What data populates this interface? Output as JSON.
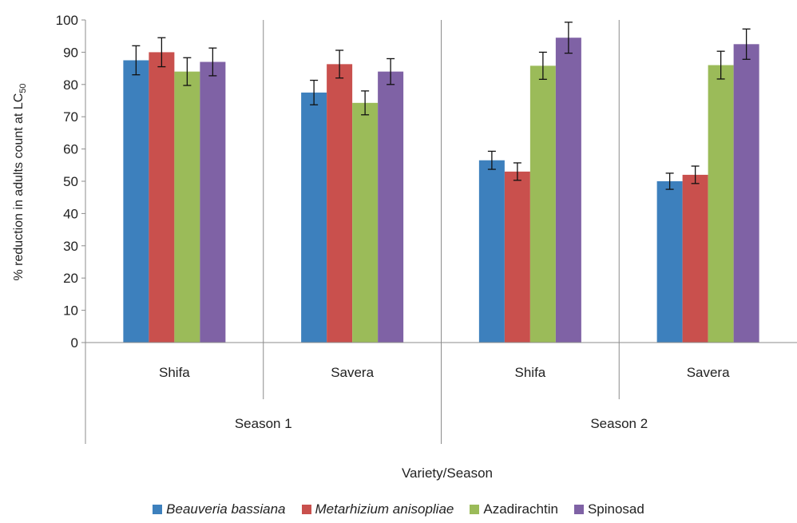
{
  "chart_data": {
    "type": "bar",
    "ylabel": "% reduction in adults count at LC",
    "ylabel_subscript": "50",
    "xlabel": "Variety/Season",
    "ylim": [
      0,
      100
    ],
    "yticks": [
      0,
      10,
      20,
      30,
      40,
      50,
      60,
      70,
      80,
      90,
      100
    ],
    "categories": [
      "Shifa",
      "Savera",
      "Shifa",
      "Savera"
    ],
    "groups": [
      {
        "label": "Season 1",
        "span": [
          0,
          1
        ]
      },
      {
        "label": "Season 2",
        "span": [
          2,
          3
        ]
      }
    ],
    "series": [
      {
        "name": "Beauveria bassiana",
        "italic": true,
        "color": "#3d80bd",
        "values": [
          87.5,
          77.5,
          56.5,
          50.0
        ],
        "errors": [
          4.5,
          3.8,
          2.8,
          2.5
        ]
      },
      {
        "name": "Metarhizium anisopliae",
        "italic": true,
        "color": "#c9504d",
        "values": [
          90.0,
          86.3,
          53.0,
          52.0
        ],
        "errors": [
          4.5,
          4.3,
          2.7,
          2.7
        ]
      },
      {
        "name": "Azadirachtin",
        "italic": false,
        "color": "#9bbb59",
        "values": [
          84.0,
          74.3,
          85.8,
          86.0
        ],
        "errors": [
          4.3,
          3.7,
          4.2,
          4.3
        ]
      },
      {
        "name": "Spinosad",
        "italic": false,
        "color": "#7f62a5",
        "values": [
          87.0,
          84.0,
          94.5,
          92.5
        ],
        "errors": [
          4.3,
          4.0,
          4.8,
          4.7
        ]
      }
    ],
    "legend_position": "bottom",
    "grid": false
  }
}
